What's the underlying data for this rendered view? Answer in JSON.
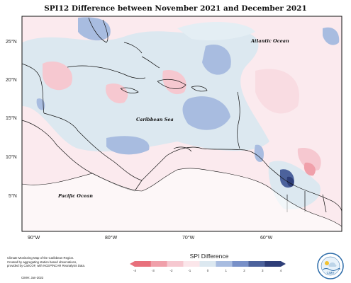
{
  "title": "SPI12 Difference between November 2021 and December 2021",
  "map": {
    "lat_labels": [
      "25°N",
      "20°N",
      "15°N",
      "10°N",
      "5°N"
    ],
    "lon_labels": [
      "90°W",
      "80°W",
      "70°W",
      "60°W"
    ],
    "places": {
      "atlantic": "Atlantic Ocean",
      "caribbean": "Caribbean Sea",
      "pacific": "Pacific Ocean"
    }
  },
  "legend": {
    "title": "SPI Difference",
    "ticks": [
      "-4",
      "-3",
      "-2",
      "-1",
      "0",
      "1",
      "2",
      "3",
      "4"
    ],
    "colors": [
      "#e8707c",
      "#f0a0aa",
      "#f6c8d0",
      "#fbe6ea",
      "#dce8f0",
      "#a8bce0",
      "#7890c8",
      "#4c629c",
      "#2e3e78"
    ]
  },
  "credit": {
    "lines": [
      "Climate Monitoring Map of the Caribbean Region.",
      "Created by aggregating station based observations,",
      "provided by CariCOF, with NCEP/NCAR Reanalysis Data."
    ],
    "copyright": "CIMH: Jan-2022"
  },
  "logo": {
    "text": "CIMH"
  }
}
